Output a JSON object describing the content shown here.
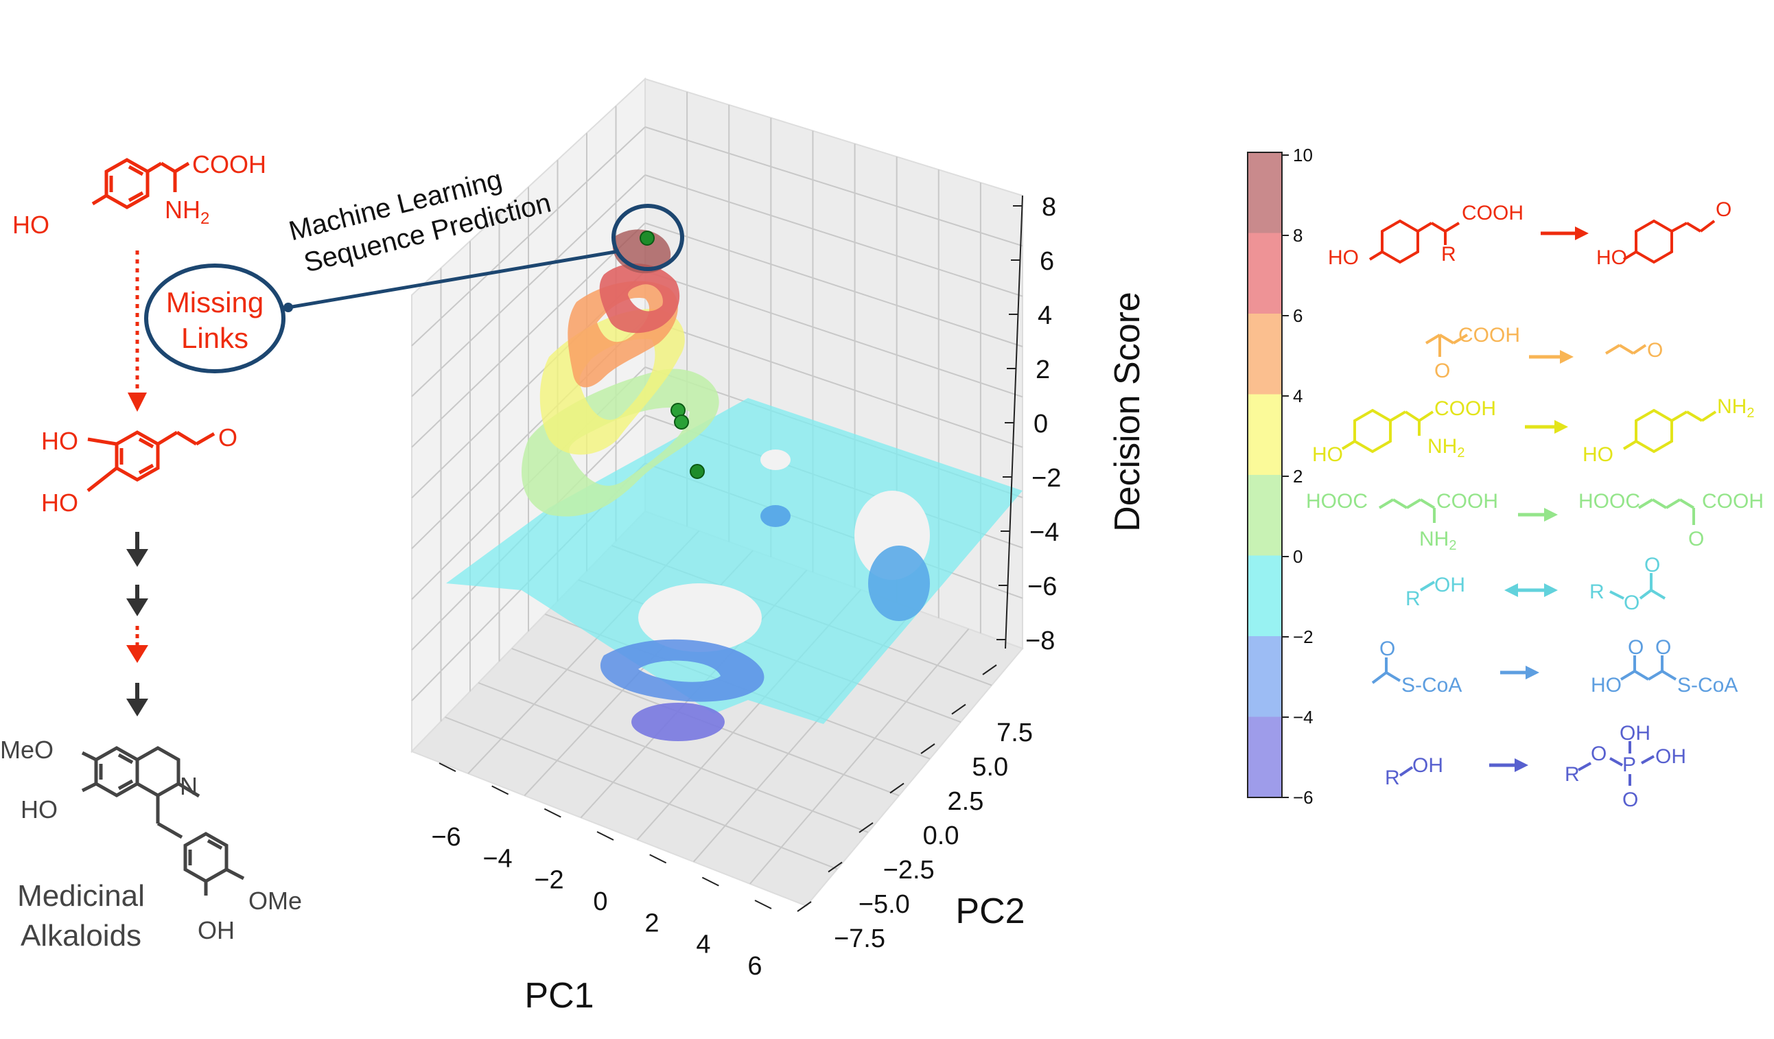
{
  "left_panel": {
    "start_cooh": "COOH",
    "start_nh": "NH",
    "start_nh_sub": "2",
    "start_ho": "HO",
    "missing_links": [
      "Missing",
      "Links"
    ],
    "dopal_ho1": "HO",
    "dopal_ho2": "HO",
    "alkaloid_meo": "MeO",
    "alkaloid_ho": "HO",
    "alkaloid_n": "N",
    "alkaloid_ome": "OMe",
    "alkaloid_oh": "OH",
    "alkaloid_label": [
      "Medicinal",
      "Alkaloids"
    ]
  },
  "callout": {
    "lines": [
      "Machine Learning",
      "Sequence Prediction"
    ]
  },
  "plot": {
    "xlabel": "PC1",
    "ylabel": "PC2",
    "zlabel": "Decision Score",
    "x_ticks": [
      "−6",
      "−4",
      "−2",
      "0",
      "2",
      "4",
      "6"
    ],
    "y_ticks": [
      "7.5",
      "5.0",
      "2.5",
      "0.0",
      "−2.5",
      "−5.0",
      "−7.5"
    ],
    "z_ticks": [
      "8",
      "6",
      "4",
      "2",
      "0",
      "−2",
      "−4",
      "−6",
      "−8"
    ]
  },
  "colorbar": {
    "ticks": [
      "10",
      "8",
      "6",
      "4",
      "2",
      "0",
      "−2",
      "−4",
      "−6"
    ],
    "bands": [
      "#c98a8c",
      "#ee9396",
      "#fbbf8f",
      "#fbfa99",
      "#c8f2b4",
      "#98f2f2",
      "#9cbcf4",
      "#9e9cea"
    ]
  },
  "reactions": [
    {
      "color": "#ee2b0d",
      "left": [
        "COOH",
        "R",
        "HO"
      ],
      "right": [
        "O",
        "HO"
      ]
    },
    {
      "color": "#f8b555",
      "left": [
        "COOH",
        "O"
      ],
      "right": [
        "O"
      ]
    },
    {
      "color": "#e3e41a",
      "left": [
        "COOH",
        "NH",
        "2",
        "HO"
      ],
      "right": [
        "NH",
        "2",
        "HO"
      ]
    },
    {
      "color": "#94e58a",
      "left": [
        "HOOC",
        "COOH",
        "NH",
        "2"
      ],
      "right": [
        "HOOC",
        "COOH",
        "O"
      ]
    },
    {
      "color": "#62d2dc",
      "left": [
        "R",
        "OH"
      ],
      "right": [
        "R",
        "O",
        "O"
      ]
    },
    {
      "color": "#5d9ee0",
      "left": [
        "O",
        "S-CoA"
      ],
      "right": [
        "HO",
        "O",
        "O",
        "S-CoA"
      ]
    },
    {
      "color": "#5760cf",
      "left": [
        "R",
        "OH"
      ],
      "right": [
        "OH",
        "R",
        "O",
        "P",
        "OH",
        "O"
      ]
    }
  ],
  "chart_data": {
    "type": "3d-surface-contour",
    "xlabel": "PC1",
    "ylabel": "PC2",
    "zlabel": "Decision Score",
    "xlim": [
      -7,
      7
    ],
    "ylim": [
      -7.5,
      7.5
    ],
    "zlim": [
      -8,
      8
    ],
    "points": [
      {
        "z": 7.8
      },
      {
        "z": 1.2
      },
      {
        "z": 0.8
      },
      {
        "z": -1.2
      }
    ]
  }
}
